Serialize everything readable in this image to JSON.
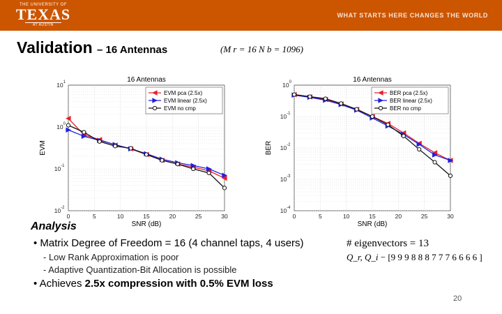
{
  "banner": {
    "logo_line1": "THE UNIVERSITY OF",
    "logo_line2": "TEXAS",
    "logo_line3": "AT AUSTIN",
    "tagline": "WHAT STARTS HERE CHANGES THE WORLD",
    "color": "#cc5500"
  },
  "slide": {
    "title": "Validation",
    "subtitle": "– 16 Antennas",
    "formula": "(M r = 16 N b = 1096)",
    "analysis_heading": "Analysis",
    "bullet1": "Matrix Degree of Freedom = 16 (4 channel taps, 4 users)",
    "sub1": "- Low Rank Approximation is poor",
    "sub2": "- Adaptive Quantization-Bit Allocation is possible",
    "bullet2_prefix": "Achieves ",
    "bullet2_bold": "2.5x compression with 0.5% EVM loss",
    "eigen_text": "eigenvectors = 13",
    "eigen_prefix": "#",
    "qr_label": "Q_r, Q_i",
    "qr_values": "− [9 9 9 8 8 8 7 7 7 6 6 6 6 ]",
    "page_number": "20"
  },
  "chart_data": [
    {
      "type": "line",
      "title": "16 Antennas",
      "xlabel": "SNR (dB)",
      "ylabel": "EVM",
      "yscale": "log",
      "xlim": [
        0,
        30
      ],
      "ylim": [
        0.01,
        10
      ],
      "x_ticks": [
        0,
        5,
        10,
        15,
        20,
        25,
        30
      ],
      "y_ticks": [
        {
          "v": 10,
          "base": "10",
          "exp": "1"
        },
        {
          "v": 1,
          "base": "10",
          "exp": "0"
        },
        {
          "v": 0.1,
          "base": "10",
          "exp": "-1"
        },
        {
          "v": 0.01,
          "base": "10",
          "exp": "-2"
        }
      ],
      "grid": true,
      "legend_position": "top-right",
      "x": [
        0,
        3,
        6,
        9,
        12,
        15,
        18,
        21,
        24,
        27,
        30
      ],
      "series": [
        {
          "name": "EVM pca (2.5x)",
          "color": "#e8202a",
          "marker": "triangle-left",
          "values": [
            1.6,
            0.65,
            0.5,
            0.37,
            0.3,
            0.22,
            0.16,
            0.13,
            0.11,
            0.09,
            0.06
          ]
        },
        {
          "name": "EVM linear (2.5x)",
          "color": "#2020e0",
          "marker": "triangle-right",
          "values": [
            0.85,
            0.6,
            0.48,
            0.38,
            0.3,
            0.23,
            0.17,
            0.14,
            0.12,
            0.1,
            0.07
          ]
        },
        {
          "name": "EVM no cmp",
          "color": "#111111",
          "marker": "circle",
          "values": [
            1.1,
            0.75,
            0.45,
            0.35,
            0.31,
            0.22,
            0.16,
            0.13,
            0.1,
            0.08,
            0.035
          ]
        }
      ]
    },
    {
      "type": "line",
      "title": "16 Antennas",
      "xlabel": "SNR (dB)",
      "ylabel": "BER",
      "yscale": "log",
      "xlim": [
        0,
        30
      ],
      "ylim": [
        0.0001,
        1
      ],
      "x_ticks": [
        0,
        5,
        10,
        15,
        20,
        25,
        30
      ],
      "y_ticks": [
        {
          "v": 1,
          "base": "10",
          "exp": "0"
        },
        {
          "v": 0.1,
          "base": "10",
          "exp": "-1"
        },
        {
          "v": 0.01,
          "base": "10",
          "exp": "-2"
        },
        {
          "v": 0.001,
          "base": "10",
          "exp": "-3"
        },
        {
          "v": 0.0001,
          "base": "10",
          "exp": "-4"
        }
      ],
      "grid": true,
      "legend_position": "top-right",
      "x": [
        0,
        3,
        6,
        9,
        12,
        15,
        18,
        21,
        24,
        27,
        30
      ],
      "series": [
        {
          "name": "BER pca (2.5x)",
          "color": "#e8202a",
          "marker": "triangle-left",
          "values": [
            0.5,
            0.42,
            0.35,
            0.25,
            0.17,
            0.1,
            0.06,
            0.03,
            0.014,
            0.007,
            0.004
          ]
        },
        {
          "name": "BER linear (2.5x)",
          "color": "#2020e0",
          "marker": "triangle-right",
          "values": [
            0.48,
            0.41,
            0.33,
            0.24,
            0.16,
            0.09,
            0.05,
            0.027,
            0.013,
            0.006,
            0.004
          ]
        },
        {
          "name": "BER no cmp",
          "color": "#111111",
          "marker": "circle",
          "values": [
            0.5,
            0.43,
            0.37,
            0.26,
            0.17,
            0.1,
            0.055,
            0.024,
            0.009,
            0.0035,
            0.0013
          ]
        }
      ]
    }
  ]
}
